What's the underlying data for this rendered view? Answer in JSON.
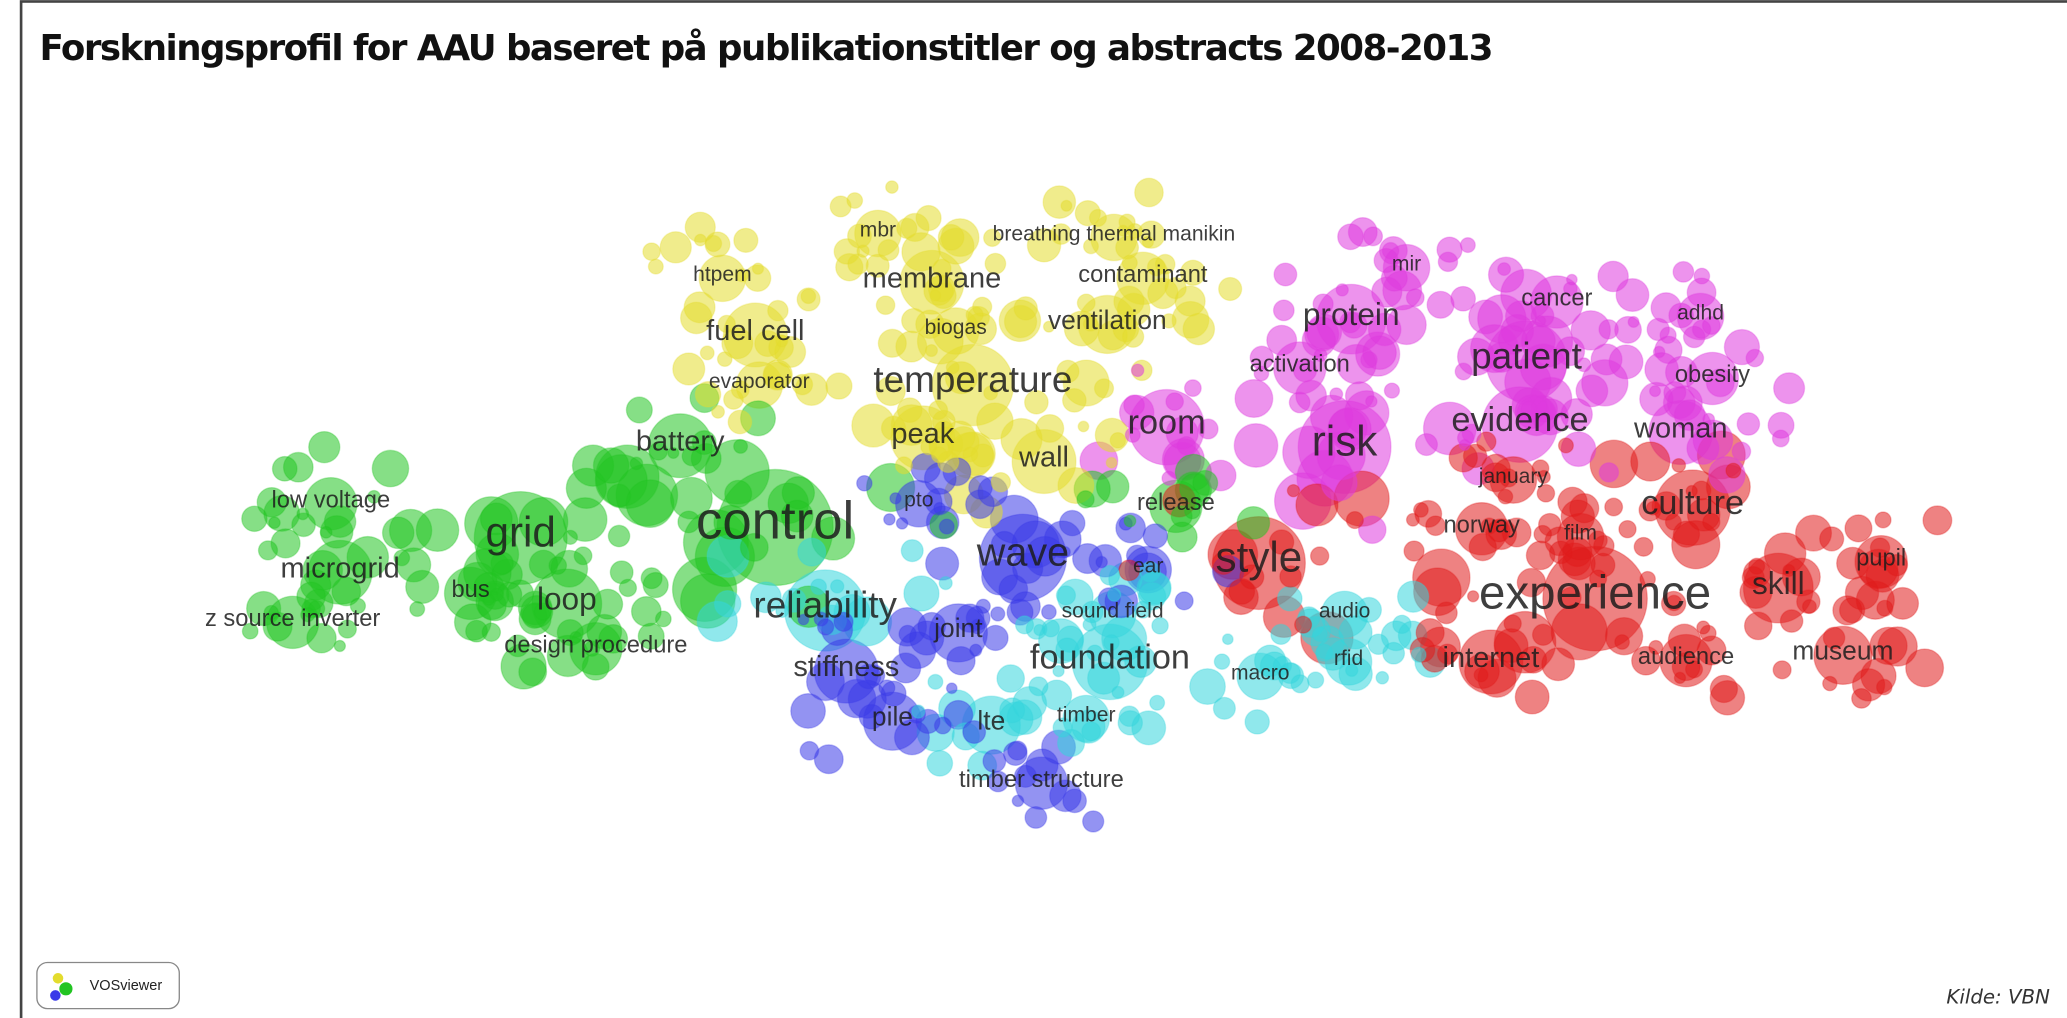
{
  "header": {
    "title": "Forskningsprofil for AAU baseret på publikationstitler og abstracts 2008-2013"
  },
  "source": "Kilde: VBN",
  "logo": "VOSviewer",
  "clusters": [
    {
      "color": "#22c422"
    },
    {
      "color": "#e3dc2e"
    },
    {
      "color": "#3a3ae8"
    },
    {
      "color": "#35d5dc"
    },
    {
      "color": "#de3ade"
    },
    {
      "color": "#e01c1c"
    }
  ],
  "nodes": [
    {
      "label": "control",
      "cluster": 0
    },
    {
      "label": "grid",
      "cluster": 0
    },
    {
      "label": "microgrid",
      "cluster": 0
    },
    {
      "label": "loop",
      "cluster": 0
    },
    {
      "label": "bus",
      "cluster": 0
    },
    {
      "label": "battery",
      "cluster": 0
    },
    {
      "label": "low voltage",
      "cluster": 0
    },
    {
      "label": "z source inverter",
      "cluster": 0
    },
    {
      "label": "design procedure",
      "cluster": 0
    },
    {
      "label": "reliability",
      "cluster": 3
    },
    {
      "label": "temperature",
      "cluster": 1
    },
    {
      "label": "membrane",
      "cluster": 1
    },
    {
      "label": "fuel cell",
      "cluster": 1
    },
    {
      "label": "htpem",
      "cluster": 1
    },
    {
      "label": "mbr",
      "cluster": 1
    },
    {
      "label": "breathing thermal manikin",
      "cluster": 1
    },
    {
      "label": "contaminant",
      "cluster": 1
    },
    {
      "label": "ventilation",
      "cluster": 1
    },
    {
      "label": "biogas",
      "cluster": 1
    },
    {
      "label": "evaporator",
      "cluster": 1
    },
    {
      "label": "peak",
      "cluster": 1
    },
    {
      "label": "wall",
      "cluster": 1
    },
    {
      "label": "pto",
      "cluster": 2
    },
    {
      "label": "wave",
      "cluster": 2
    },
    {
      "label": "joint",
      "cluster": 2
    },
    {
      "label": "stiffness",
      "cluster": 2
    },
    {
      "label": "pile",
      "cluster": 2
    },
    {
      "label": "ear",
      "cluster": 2
    },
    {
      "label": "release",
      "cluster": 0
    },
    {
      "label": "timber structure",
      "cluster": 2
    },
    {
      "label": "sound field",
      "cluster": 3
    },
    {
      "label": "foundation",
      "cluster": 3
    },
    {
      "label": "lte",
      "cluster": 3
    },
    {
      "label": "timber",
      "cluster": 3
    },
    {
      "label": "macro",
      "cluster": 3
    },
    {
      "label": "audio",
      "cluster": 3
    },
    {
      "label": "rfid",
      "cluster": 3
    },
    {
      "label": "room",
      "cluster": 4
    },
    {
      "label": "style",
      "cluster": 5
    },
    {
      "label": "risk",
      "cluster": 4
    },
    {
      "label": "protein",
      "cluster": 4
    },
    {
      "label": "mir",
      "cluster": 4
    },
    {
      "label": "activation",
      "cluster": 4
    },
    {
      "label": "patient",
      "cluster": 4
    },
    {
      "label": "evidence",
      "cluster": 4
    },
    {
      "label": "cancer",
      "cluster": 4
    },
    {
      "label": "adhd",
      "cluster": 4
    },
    {
      "label": "obesity",
      "cluster": 4
    },
    {
      "label": "woman",
      "cluster": 4
    },
    {
      "label": "experience",
      "cluster": 5
    },
    {
      "label": "culture",
      "cluster": 5
    },
    {
      "label": "skill",
      "cluster": 5
    },
    {
      "label": "pupil",
      "cluster": 5
    },
    {
      "label": "museum",
      "cluster": 5
    },
    {
      "label": "audience",
      "cluster": 5
    },
    {
      "label": "internet",
      "cluster": 5
    },
    {
      "label": "film",
      "cluster": 5
    },
    {
      "label": "norway",
      "cluster": 5
    },
    {
      "label": "january",
      "cluster": 5
    }
  ]
}
